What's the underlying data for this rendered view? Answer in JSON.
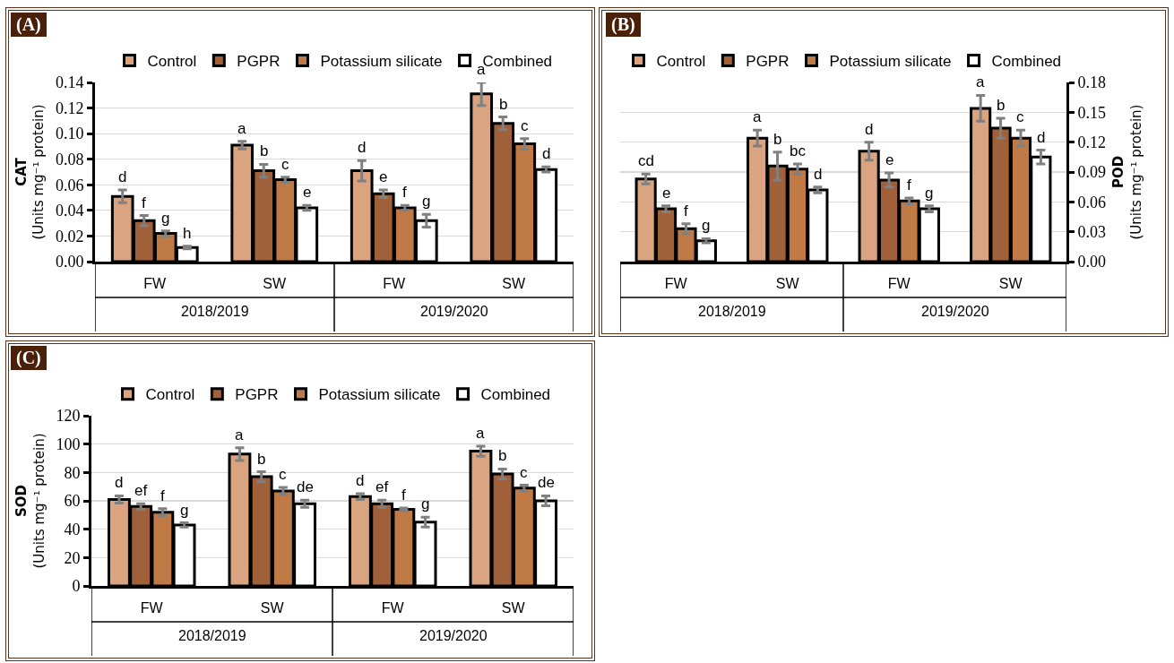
{
  "chart_data": [
    {
      "type": "bar",
      "title": "(A)",
      "ylabel": "CAT\n(Units mg⁻¹ protein)",
      "categories": [
        "FW",
        "SW",
        "FW",
        "SW"
      ],
      "annotations": [
        "2018/2019",
        "2019/2020"
      ],
      "legend": "top",
      "grid": "y",
      "ylim": [
        0,
        0.14
      ],
      "yticks": [
        {
          "value": 0,
          "label": "0.00"
        },
        {
          "value": 0.02,
          "label": "0.02"
        },
        {
          "value": 0.04,
          "label": "0.04"
        },
        {
          "value": 0.06,
          "label": "0.06"
        },
        {
          "value": 0.08,
          "label": "0.08"
        },
        {
          "value": 0.1,
          "label": "0.10"
        },
        {
          "value": 0.12,
          "label": "0.12"
        },
        {
          "value": 0.14,
          "label": "0.14"
        }
      ],
      "series": [
        {
          "name": "Control",
          "color": "#d9a47f",
          "values": [
            0.051,
            0.091,
            0.071,
            0.131
          ],
          "errors": [
            0.005,
            0.003,
            0.008,
            0.009
          ],
          "value_labels": [
            "d",
            "a",
            "d",
            "a"
          ]
        },
        {
          "name": "PGPR",
          "color": "#a0603a",
          "values": [
            0.032,
            0.071,
            0.053,
            0.108
          ],
          "errors": [
            0.004,
            0.005,
            0.003,
            0.005
          ],
          "value_labels": [
            "f",
            "b",
            "e",
            "b"
          ]
        },
        {
          "name": "Potassium silicate",
          "color": "#c07a45",
          "values": [
            0.022,
            0.064,
            0.042,
            0.092
          ],
          "errors": [
            0.002,
            0.002,
            0.002,
            0.004
          ],
          "value_labels": [
            "g",
            "c",
            "f",
            "c"
          ]
        },
        {
          "name": "Combined",
          "color": "#ffffff",
          "values": [
            0.011,
            0.042,
            0.032,
            0.072
          ],
          "errors": [
            0.001,
            0.002,
            0.005,
            0.002
          ],
          "value_labels": [
            "h",
            "e",
            "g",
            "d"
          ]
        }
      ]
    },
    {
      "type": "bar",
      "title": "(B)",
      "y2label": "POD\n(Units mg⁻¹ protein)",
      "categories": [
        "FW",
        "SW",
        "FW",
        "SW"
      ],
      "annotations": [
        "2018/2019",
        "2019/2020"
      ],
      "legend": "top",
      "grid": "y",
      "y2lim": [
        0,
        0.18
      ],
      "y2ticks": [
        {
          "value": 0,
          "label": "0.00"
        },
        {
          "value": 0.03,
          "label": "0.03"
        },
        {
          "value": 0.06,
          "label": "0.06"
        },
        {
          "value": 0.09,
          "label": "0.09"
        },
        {
          "value": 0.12,
          "label": "0.12"
        },
        {
          "value": 0.15,
          "label": "0.15"
        },
        {
          "value": 0.18,
          "label": "0.18"
        }
      ],
      "series": [
        {
          "name": "Control",
          "color": "#d9a47f",
          "axis": "y2",
          "values": [
            0.083,
            0.124,
            0.111,
            0.154
          ],
          "errors": [
            0.005,
            0.008,
            0.009,
            0.013
          ],
          "value_labels": [
            "cd",
            "a",
            "d",
            "a"
          ]
        },
        {
          "name": "PGPR",
          "color": "#a0603a",
          "axis": "y2",
          "values": [
            0.053,
            0.096,
            0.082,
            0.134
          ],
          "errors": [
            0.003,
            0.014,
            0.007,
            0.01
          ],
          "value_labels": [
            "e",
            "b",
            "e",
            "b"
          ]
        },
        {
          "name": "Potassium silicate",
          "color": "#c07a45",
          "axis": "y2",
          "values": [
            0.033,
            0.093,
            0.061,
            0.124
          ],
          "errors": [
            0.005,
            0.005,
            0.003,
            0.008
          ],
          "value_labels": [
            "f",
            "bc",
            "f",
            "c"
          ]
        },
        {
          "name": "Combined",
          "color": "#ffffff",
          "axis": "y2",
          "values": [
            0.021,
            0.072,
            0.053,
            0.105
          ],
          "errors": [
            0.002,
            0.003,
            0.003,
            0.007
          ],
          "value_labels": [
            "g",
            "d",
            "g",
            "d"
          ]
        }
      ]
    },
    {
      "type": "bar",
      "title": "(C)",
      "ylabel": "SOD\n(Units mg⁻¹ protein)",
      "categories": [
        "FW",
        "SW",
        "FW",
        "SW"
      ],
      "annotations": [
        "2018/2019",
        "2019/2020"
      ],
      "legend": "top",
      "grid": "y",
      "ylim": [
        0,
        120
      ],
      "yticks": [
        0,
        20,
        40,
        60,
        80,
        100,
        120
      ],
      "series": [
        {
          "name": "Control",
          "color": "#d9a47f",
          "values": [
            61,
            93,
            63,
            95
          ],
          "errors": [
            2.5,
            4.5,
            2,
            3.5
          ],
          "value_labels": [
            "d",
            "a",
            "d",
            "a"
          ]
        },
        {
          "name": "PGPR",
          "color": "#a0603a",
          "values": [
            56,
            77,
            58,
            79
          ],
          "errors": [
            2,
            3.5,
            2.5,
            3.5
          ],
          "value_labels": [
            "ef",
            "b",
            "ef",
            "b"
          ]
        },
        {
          "name": "Potassium silicate",
          "color": "#c07a45",
          "values": [
            52,
            67,
            54,
            69
          ],
          "errors": [
            2.5,
            2.5,
            1,
            2
          ],
          "value_labels": [
            "f",
            "c",
            "f",
            "c"
          ]
        },
        {
          "name": "Combined",
          "color": "#ffffff",
          "values": [
            43,
            58,
            45,
            60
          ],
          "errors": [
            1.5,
            2.5,
            3.5,
            3.5
          ],
          "value_labels": [
            "g",
            "de",
            "g",
            "de"
          ]
        }
      ]
    }
  ]
}
